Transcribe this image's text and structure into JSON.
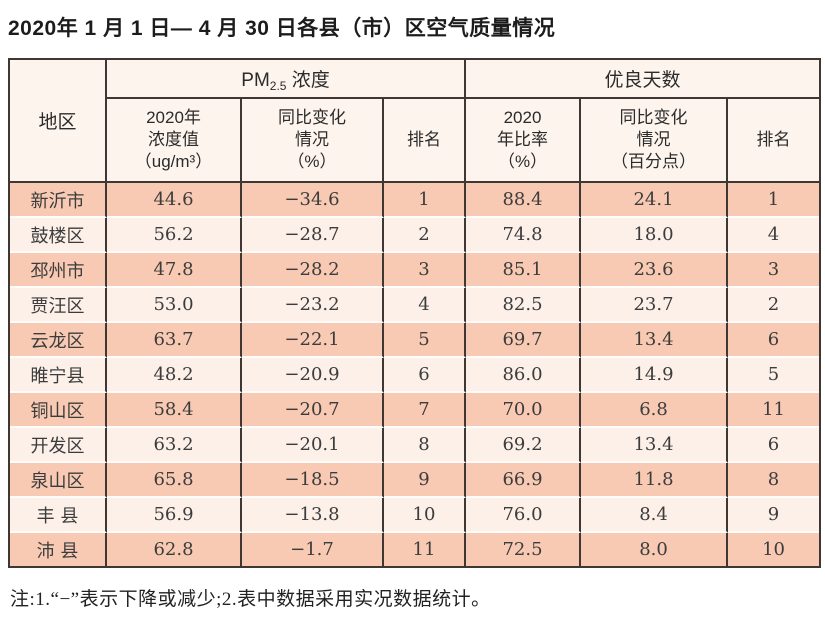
{
  "page": {
    "title": "2020年 1 月 1 日— 4 月 30 日各县（市）区空气质量情况",
    "note": "注:1.“−”表示下降或减少;2.表中数据采用实况数据统计。"
  },
  "colors": {
    "border": "#3e3734",
    "header_bg": "#fdf5ed",
    "row_salmon": "#f8cab3",
    "row_light": "#fcf0e9"
  },
  "table": {
    "group_headers": {
      "region": "地区",
      "pm": {
        "base": "PM",
        "sub": "2.5",
        "rest": " 浓度"
      },
      "good_days": "优良天数"
    },
    "sub_headers": {
      "pm_value": "2020年\n浓度值\n（ug/m³）",
      "pm_change": "同比变化\n情况\n（%）",
      "pm_rank": "排名",
      "good_rate": "2020\n年比率\n（%）",
      "good_change": "同比变化\n情况\n（百分点）",
      "good_rank": "排名"
    },
    "row_keys": [
      "region",
      "pm_value",
      "pm_change",
      "pm_rank",
      "good_rate",
      "good_change",
      "good_rank"
    ],
    "rows": [
      {
        "region": "新沂市",
        "pm_value": "44.6",
        "pm_change": "−34.6",
        "pm_rank": "1",
        "good_rate": "88.4",
        "good_change": "24.1",
        "good_rank": "1"
      },
      {
        "region": "鼓楼区",
        "pm_value": "56.2",
        "pm_change": "−28.7",
        "pm_rank": "2",
        "good_rate": "74.8",
        "good_change": "18.0",
        "good_rank": "4"
      },
      {
        "region": "邳州市",
        "pm_value": "47.8",
        "pm_change": "−28.2",
        "pm_rank": "3",
        "good_rate": "85.1",
        "good_change": "23.6",
        "good_rank": "3"
      },
      {
        "region": "贾汪区",
        "pm_value": "53.0",
        "pm_change": "−23.2",
        "pm_rank": "4",
        "good_rate": "82.5",
        "good_change": "23.7",
        "good_rank": "2"
      },
      {
        "region": "云龙区",
        "pm_value": "63.7",
        "pm_change": "−22.1",
        "pm_rank": "5",
        "good_rate": "69.7",
        "good_change": "13.4",
        "good_rank": "6"
      },
      {
        "region": "睢宁县",
        "pm_value": "48.2",
        "pm_change": "−20.9",
        "pm_rank": "6",
        "good_rate": "86.0",
        "good_change": "14.9",
        "good_rank": "5"
      },
      {
        "region": "铜山区",
        "pm_value": "58.4",
        "pm_change": "−20.7",
        "pm_rank": "7",
        "good_rate": "70.0",
        "good_change": "6.8",
        "good_rank": "11"
      },
      {
        "region": "开发区",
        "pm_value": "63.2",
        "pm_change": "−20.1",
        "pm_rank": "8",
        "good_rate": "69.2",
        "good_change": "13.4",
        "good_rank": "6"
      },
      {
        "region": "泉山区",
        "pm_value": "65.8",
        "pm_change": "−18.5",
        "pm_rank": "9",
        "good_rate": "66.9",
        "good_change": "11.8",
        "good_rank": "8"
      },
      {
        "region": "丰 县",
        "pm_value": "56.9",
        "pm_change": "−13.8",
        "pm_rank": "10",
        "good_rate": "76.0",
        "good_change": "8.4",
        "good_rank": "9"
      },
      {
        "region": "沛 县",
        "pm_value": "62.8",
        "pm_change": "−1.7",
        "pm_rank": "11",
        "good_rate": "72.5",
        "good_change": "8.0",
        "good_rank": "10"
      }
    ]
  }
}
